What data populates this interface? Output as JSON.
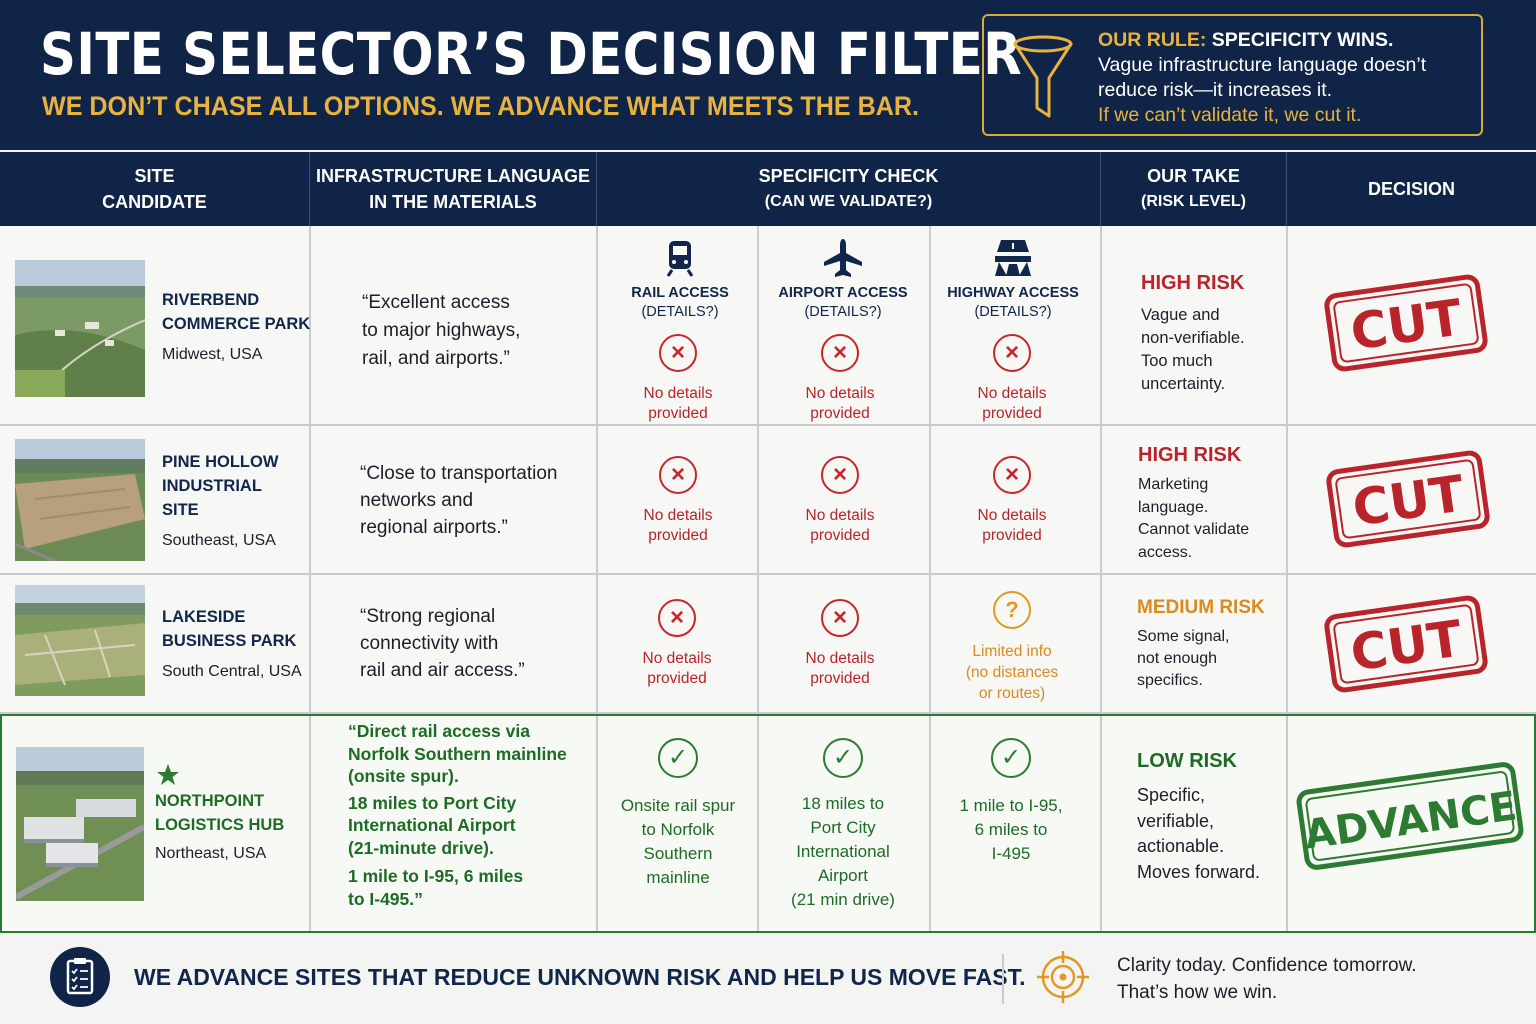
{
  "header": {
    "title": "SITE SELECTOR’S DECISION FILTER",
    "subtitle": "WE DON’T CHASE ALL OPTIONS. WE ADVANCE WHAT MEETS THE BAR.",
    "rule_label": "OUR RULE:",
    "rule_headline": "SPECIFICITY WINS.",
    "rule_body": "Vague infrastructure language doesn’t reduce risk—it increases it.",
    "rule_last": "If we can’t validate it, we cut it.",
    "icon": "funnel-icon"
  },
  "columns": {
    "site": [
      "SITE",
      "CANDIDATE"
    ],
    "language": [
      "INFRASTRUCTURE LANGUAGE",
      "IN THE MATERIALS"
    ],
    "check": [
      "SPECIFICITY CHECK",
      "(CAN WE VALIDATE?)"
    ],
    "take": [
      "OUR TAKE",
      "(RISK LEVEL)"
    ],
    "decision": "DECISION"
  },
  "modes": [
    {
      "label": "RAIL ACCESS",
      "sub": "(DETAILS?)",
      "icon": "train-icon"
    },
    {
      "label": "AIRPORT ACCESS",
      "sub": "(DETAILS?)",
      "icon": "airplane-icon"
    },
    {
      "label": "HIGHWAY ACCESS",
      "sub": "(DETAILS?)",
      "icon": "highway-icon"
    }
  ],
  "rows": [
    {
      "name": [
        "RIVERBEND",
        "COMMERCE PARK"
      ],
      "location": "Midwest, USA",
      "quote": [
        "“Excellent access",
        "to major highways,",
        "rail, and airports.”"
      ],
      "checks": [
        [
          "No details",
          "provided"
        ],
        [
          "No details",
          "provided"
        ],
        [
          "No details",
          "provided"
        ]
      ],
      "risk": "HIGH RISK",
      "take": [
        "Vague and",
        "non-verifiable.",
        "Too much",
        "uncertainty."
      ],
      "decision": "CUT"
    },
    {
      "name": [
        "PINE HOLLOW",
        "INDUSTRIAL",
        "SITE"
      ],
      "location": "Southeast, USA",
      "quote": [
        "“Close to transportation",
        "networks and",
        "regional airports.”"
      ],
      "checks": [
        [
          "No details",
          "provided"
        ],
        [
          "No details",
          "provided"
        ],
        [
          "No details",
          "provided"
        ]
      ],
      "risk": "HIGH RISK",
      "take": [
        "Marketing",
        "language.",
        "Cannot validate",
        "access."
      ],
      "decision": "CUT"
    },
    {
      "name": [
        "LAKESIDE",
        "BUSINESS PARK"
      ],
      "location": "South Central, USA",
      "quote": [
        "“Strong regional",
        "connectivity with",
        "rail and air access.”"
      ],
      "checks": [
        [
          "No details",
          "provided"
        ],
        [
          "No details",
          "provided"
        ],
        [
          "Limited info",
          "(no distances",
          "or routes)"
        ]
      ],
      "risk": "MEDIUM RISK",
      "take": [
        "Some signal,",
        "not enough",
        "specifics."
      ],
      "decision": "CUT"
    },
    {
      "name": [
        "NORTHPOINT",
        "LOGISTICS HUB"
      ],
      "location": "Northeast, USA",
      "quote": [
        "“Direct rail access via",
        "Norfolk Southern mainline",
        "(onsite spur).",
        "18 miles to Port City",
        "International Airport",
        "(21-minute drive).",
        "1 mile to I-95, 6 miles",
        "to I-495.”"
      ],
      "checks": [
        [
          "Onsite rail spur",
          "to Norfolk",
          "Southern",
          "mainline"
        ],
        [
          "18 miles to",
          "Port City",
          "International",
          "Airport",
          "(21 min drive)"
        ],
        [
          "1 mile to I-95,",
          "6 miles to",
          "I-495"
        ]
      ],
      "risk": "LOW RISK",
      "take": [
        "Specific,",
        "verifiable,",
        "actionable.",
        "Moves forward."
      ],
      "decision": "ADVANCE"
    }
  ],
  "footer": {
    "message": "WE ADVANCE SITES THAT REDUCE UNKNOWN RISK AND HELP US MOVE FAST.",
    "tagline": [
      "Clarity today. Confidence tomorrow.",
      "That’s how we win."
    ],
    "icons": [
      "clipboard-check-icon",
      "target-icon"
    ]
  },
  "colors": {
    "navy": "#0f2446",
    "gold": "#e8b23e",
    "red": "#c8262b",
    "orange": "#e09a22",
    "green": "#2d7a32"
  }
}
